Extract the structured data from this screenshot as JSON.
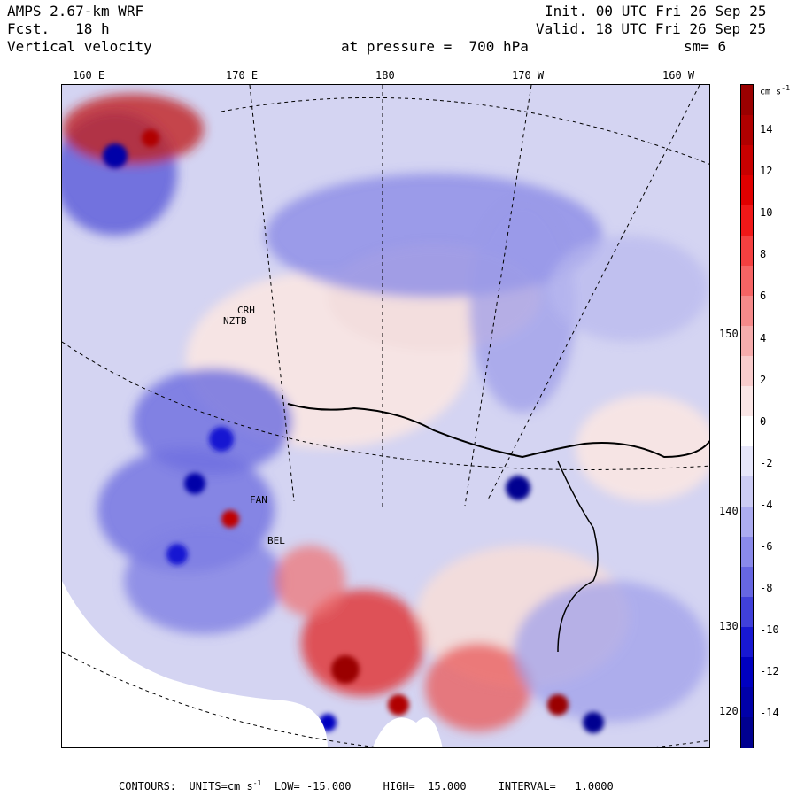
{
  "header": {
    "model": "AMPS 2.67-km WRF",
    "forecast": "Fcst.   18 h",
    "field": "Vertical velocity",
    "init": "Init. 00 UTC Fri 26 Sep 25",
    "valid": "Valid. 18 UTC Fri 26 Sep 25",
    "level": "at pressure =  700 hPa",
    "smooth": "sm= 6"
  },
  "longitude_labels": [
    "160 E",
    "170 E",
    "180",
    "170 W",
    "160 W"
  ],
  "latitude_labels": [
    "150 W",
    "140 W",
    "130 W",
    "120 W"
  ],
  "colorbar": {
    "units": "cm s",
    "units_exp": "-1",
    "ticks": [
      "14",
      "12",
      "10",
      "8",
      "6",
      "4",
      "2",
      "0",
      "-2",
      "-4",
      "-6",
      "-8",
      "-10",
      "-12",
      "-14"
    ],
    "colors": [
      "#9a0000",
      "#b00000",
      "#c80000",
      "#e00000",
      "#f01818",
      "#f44040",
      "#f66464",
      "#f68a8a",
      "#f6acac",
      "#f8cccc",
      "#fae6e6",
      "#ffffff",
      "#e6e6fa",
      "#ccccf4",
      "#acacf0",
      "#8a8aea",
      "#6666e2",
      "#4040da",
      "#1818d2",
      "#0000c0",
      "#0000a8",
      "#000090"
    ]
  },
  "stations": [
    "CRH",
    "NZTB",
    "FAN",
    "BEL"
  ],
  "footer": {
    "contours_label": "CONTOURS:",
    "units_label": "UNITS=cm s",
    "units_exp": "-1",
    "low": "LOW= -15.000",
    "high": "HIGH=  15.000",
    "interval": "INTERVAL=   1.0000"
  }
}
